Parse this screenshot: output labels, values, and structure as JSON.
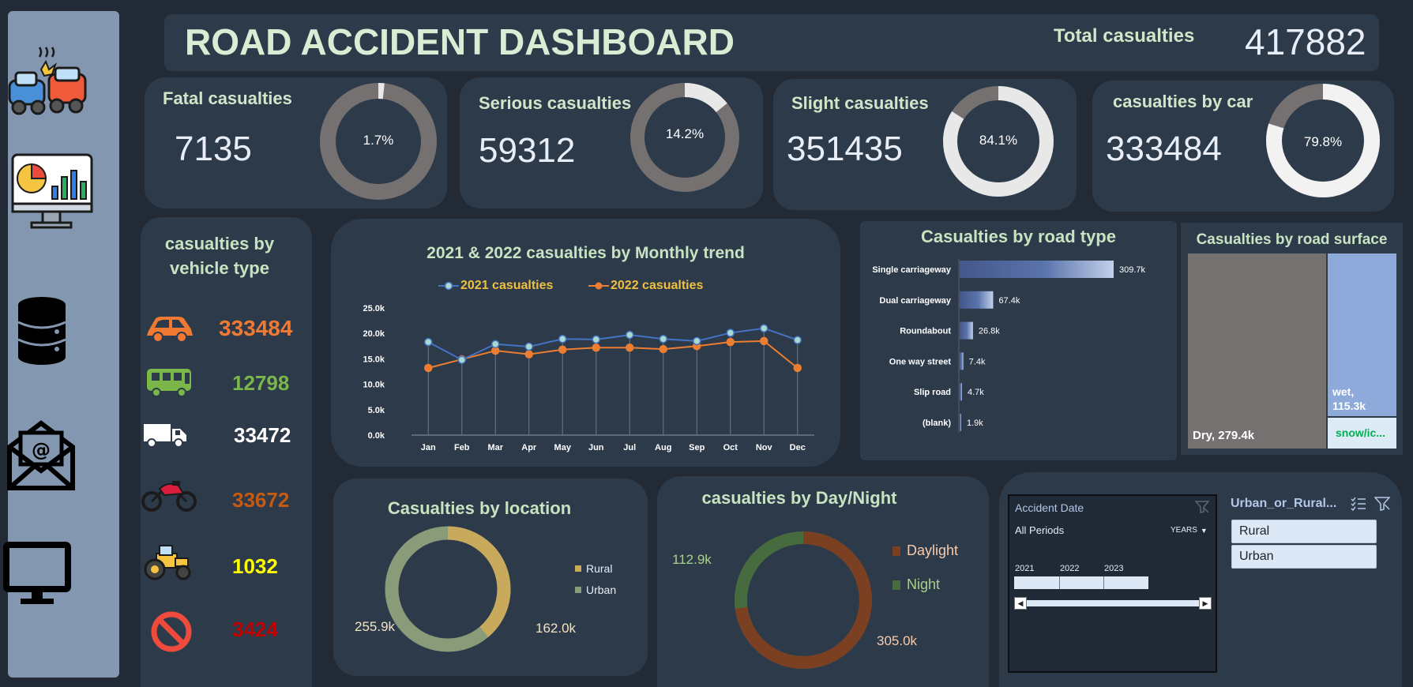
{
  "header": {
    "title": "ROAD ACCIDENT DASHBOARD",
    "total_label": "Total casualties",
    "total_value": "417882"
  },
  "kpis": [
    {
      "title": "Fatal casualties",
      "value": "7135",
      "pct": "1.7%"
    },
    {
      "title": "Serious  casualties",
      "value": "59312",
      "pct": "14.2%"
    },
    {
      "title": "Slight  casualties",
      "value": "351435",
      "pct": "84.1%"
    },
    {
      "title": "casualties by car",
      "value": "333484",
      "pct": "79.8%"
    }
  ],
  "vehicle": {
    "title": "casualties by vehicle type",
    "items": [
      {
        "icon": "car-icon",
        "value": "333484",
        "color": "#f07a33"
      },
      {
        "icon": "bus-icon",
        "value": "12798",
        "color": "#7ab648"
      },
      {
        "icon": "truck-icon",
        "value": "33472",
        "color": "#ffffff"
      },
      {
        "icon": "motorcycle-icon",
        "value": "33672",
        "color": "#c55a11"
      },
      {
        "icon": "tractor-icon",
        "value": "1032",
        "color": "#ffff00"
      },
      {
        "icon": "prohibited-icon",
        "value": "3424",
        "color": "#c00000"
      }
    ]
  },
  "chart_data": [
    {
      "type": "line",
      "title": "2021 & 2022 casualties by Monthly trend",
      "categories": [
        "Jan",
        "Feb",
        "Mar",
        "Apr",
        "May",
        "Jun",
        "Jul",
        "Aug",
        "Sep",
        "Oct",
        "Nov",
        "Dec"
      ],
      "series": [
        {
          "name": "2021 casualties",
          "color": "#4472c4",
          "values": [
            18300,
            14800,
            17900,
            17400,
            18900,
            18800,
            19700,
            18900,
            18500,
            20100,
            21000,
            18700
          ]
        },
        {
          "name": "2022 casualties",
          "color": "#ed7d31",
          "values": [
            13200,
            14900,
            16600,
            15900,
            16800,
            17200,
            17200,
            16900,
            17500,
            18300,
            18500,
            13200
          ]
        }
      ],
      "y_ticks": [
        "0.0k",
        "5.0k",
        "10.0k",
        "15.0k",
        "20.0k",
        "25.0k"
      ],
      "ylim": [
        0,
        25000
      ]
    },
    {
      "type": "bar",
      "title": "Casualties by road type",
      "categories": [
        "Single carriageway",
        "Dual carriageway",
        "Roundabout",
        "One way street",
        "Slip road",
        "(blank)"
      ],
      "values": [
        309.7,
        67.4,
        26.8,
        7.4,
        4.7,
        1.9
      ],
      "labels": [
        "309.7k",
        "67.4k",
        "26.8k",
        "7.4k",
        "4.7k",
        "1.9k"
      ],
      "color": "#5671a8"
    },
    {
      "type": "treemap",
      "title": "Casualties by road surface",
      "items": [
        {
          "name": "Dry",
          "value": 279.4,
          "label": "Dry, 279.4k",
          "color": "#767171"
        },
        {
          "name": "wet",
          "value": 115.3,
          "label": "wet,\n115.3k",
          "color": "#8eaadb"
        },
        {
          "name": "snow",
          "value": 23,
          "label": "snow/ic...",
          "color": "#ddebf7"
        }
      ]
    },
    {
      "type": "pie",
      "title": "Casualties by location",
      "labels": [
        "Rural",
        "Urban"
      ],
      "values": [
        162.0,
        255.9
      ],
      "value_labels": [
        "162.0k",
        "255.9k"
      ],
      "colors": [
        "#c9a95c",
        "#8a9b7a"
      ]
    },
    {
      "type": "pie",
      "title": "casualties by Day/Night",
      "labels": [
        "Daylight",
        "Night"
      ],
      "values": [
        305.0,
        112.9
      ],
      "value_labels": [
        "305.0k",
        "112.9k"
      ],
      "colors": [
        "#7b3f22",
        "#466b3e"
      ]
    }
  ],
  "slicer_date": {
    "title": "Accident Date",
    "period": "All Periods",
    "granularity": "YEARS",
    "years": [
      "2021",
      "2022",
      "2023"
    ]
  },
  "slicer_area": {
    "title": "Urban_or_Rural...",
    "options": [
      "Rural",
      "Urban"
    ]
  }
}
